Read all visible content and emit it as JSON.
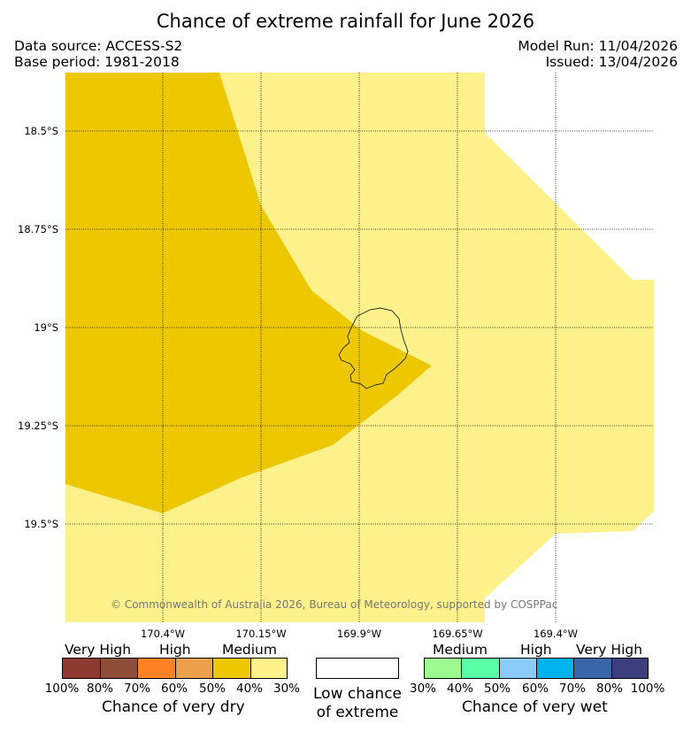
{
  "title": "Chance of extreme rainfall for June 2026",
  "meta": {
    "data_source": "Data source: ACCESS-S2",
    "base_period": "Base period: 1981-2018",
    "model_run": "Model Run: 11/04/2026",
    "issued": "Issued: 13/04/2026"
  },
  "map": {
    "lat_labels": [
      "18.5°S",
      "18.75°S",
      "19°S",
      "19.25°S",
      "19.5°S"
    ],
    "lon_labels": [
      "170.4°W",
      "170.15°W",
      "169.9°W",
      "169.65°W",
      "169.4°W"
    ],
    "copyright": "© Commonwealth of Australia 2026, Bureau of Meteorology, supported by COSPPac",
    "zones": [
      {
        "category": "Medium (40-50% chance of very dry)",
        "color": "#edc800"
      },
      {
        "category": "30-40% chance of very dry",
        "color": "#fcf18a"
      },
      {
        "category": "Low chance of extreme",
        "color": "#ffffff"
      }
    ]
  },
  "legend": {
    "dry": {
      "levels": [
        "Very High",
        "High",
        "Medium"
      ],
      "ticks": [
        "100%",
        "80%",
        "70%",
        "60%",
        "50%",
        "40%",
        "30%"
      ],
      "colors": [
        "#8e3a30",
        "#8e4e3a",
        "#ff8224",
        "#eda04a",
        "#edc800",
        "#fcf18a"
      ],
      "caption": "Chance of very dry"
    },
    "neutral": {
      "line1": "Low chance",
      "line2": "of extreme",
      "color": "#ffffff"
    },
    "wet": {
      "levels": [
        "Medium",
        "High",
        "Very High"
      ],
      "ticks": [
        "30%",
        "40%",
        "50%",
        "60%",
        "70%",
        "80%",
        "100%"
      ],
      "colors": [
        "#9dfa8f",
        "#5affa8",
        "#8acbfa",
        "#00b2ee",
        "#3a66a8",
        "#3d3e7e"
      ],
      "caption": "Chance of very wet"
    }
  }
}
